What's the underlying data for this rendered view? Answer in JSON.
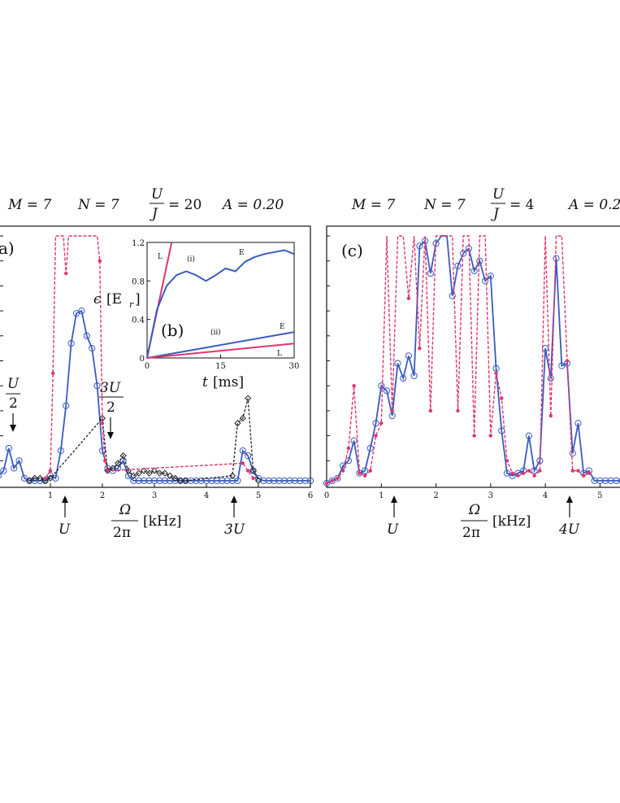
{
  "figure": {
    "panel_a": {
      "params": {
        "M": "M = 7",
        "N": "N = 7",
        "U_over_J_num": "U",
        "U_over_J_den": "J",
        "U_over_J_val": "= 20",
        "A": "A = 0.20"
      },
      "label": "a)",
      "xlabel_num": "Ω",
      "xlabel_den": "2π",
      "xlabel_unit": "[kHz]",
      "annotations": {
        "u_half_num": "U",
        "u_half_den": "2",
        "three_u_half_num": "3U",
        "three_u_half_den": "2",
        "u": "U",
        "three_u": "3U"
      }
    },
    "inset_b": {
      "label": "(b)",
      "ylabel": "ϵ",
      "ylabel_unit": "[E",
      "ylabel_sub": "r",
      "ylabel_close": "]",
      "xlabel": "t",
      "xlabel_unit": "[ms]",
      "curve_labels": {
        "i": "(i)",
        "ii": "(ii)",
        "L_top": "L",
        "E_top": "E",
        "E_bottom": "E",
        "L_bottom": "L"
      }
    },
    "panel_c": {
      "params": {
        "M": "M = 7",
        "N": "N = 7",
        "U_over_J_num": "U",
        "U_over_J_den": "J",
        "U_over_J_val": "= 4",
        "A": "A = 0.2"
      },
      "label": "(c)",
      "xlabel_num": "Ω",
      "xlabel_den": "2π",
      "xlabel_unit": "[kHz]",
      "annotations": {
        "u": "U",
        "four_u": "4U"
      }
    }
  },
  "chart_data": [
    {
      "type": "line",
      "id": "panel_a",
      "title": "M = 7   N = 7   U/J = 20   A = 0.20",
      "xlabel": "Ω/2π [kHz]",
      "ylabel": "",
      "xlim": [
        0,
        6
      ],
      "ylim": [
        0,
        1
      ],
      "xticks": [
        1,
        2,
        3,
        4,
        5,
        6
      ],
      "colors": {
        "blue": "#3a5bbf",
        "red": "#e0356b",
        "black": "#222222"
      },
      "series": [
        {
          "name": "blue-circles",
          "x": [
            0,
            0.1,
            0.2,
            0.3,
            0.4,
            0.5,
            0.6,
            0.7,
            0.8,
            0.9,
            1.0,
            1.1,
            1.2,
            1.3,
            1.4,
            1.5,
            1.6,
            1.7,
            1.8,
            1.9,
            2.0,
            2.1,
            2.2,
            2.3,
            2.4,
            2.5,
            2.6,
            2.7,
            2.8,
            2.9,
            3.0,
            3.1,
            3.2,
            3.3,
            3.4,
            3.5,
            3.6,
            3.7,
            3.8,
            3.9,
            4.0,
            4.1,
            4.2,
            4.3,
            4.4,
            4.5,
            4.6,
            4.7,
            4.8,
            4.9,
            5.0,
            5.1,
            5.2,
            5.3,
            5.4,
            5.5,
            5.6,
            5.7,
            5.8,
            5.9,
            6.0
          ],
          "y": [
            0.04,
            0.06,
            0.15,
            0.07,
            0.1,
            0.03,
            0.02,
            0.02,
            0.02,
            0.02,
            0.04,
            0.03,
            0.14,
            0.32,
            0.57,
            0.69,
            0.7,
            0.6,
            0.55,
            0.4,
            0.14,
            0.07,
            0.06,
            0.07,
            0.1,
            0.04,
            0.02,
            0.02,
            0.02,
            0.02,
            0.02,
            0.02,
            0.02,
            0.02,
            0.02,
            0.02,
            0.02,
            0.02,
            0.02,
            0.02,
            0.02,
            0.02,
            0.02,
            0.02,
            0.02,
            0.02,
            0.02,
            0.14,
            0.12,
            0.06,
            0.03,
            0.02,
            0.02,
            0.02,
            0.02,
            0.02,
            0.02,
            0.02,
            0.02,
            0.02,
            0.02
          ]
        },
        {
          "name": "black-diamonds",
          "x": [
            0.6,
            0.7,
            0.8,
            0.9,
            1.0,
            2.0,
            2.1,
            2.2,
            2.3,
            2.4,
            2.5,
            2.6,
            2.7,
            2.8,
            2.9,
            3.0,
            3.1,
            3.2,
            3.3,
            3.4,
            3.5,
            3.6,
            4.5,
            4.6,
            4.7,
            4.8,
            4.9,
            5.0
          ],
          "y": [
            0.02,
            0.03,
            0.03,
            0.02,
            0.03,
            0.27,
            0.06,
            0.07,
            0.09,
            0.12,
            0.06,
            0.04,
            0.05,
            0.06,
            0.05,
            0.06,
            0.05,
            0.05,
            0.04,
            0.03,
            0.02,
            0.02,
            0.04,
            0.25,
            0.27,
            0.35,
            0.06,
            0.02
          ]
        },
        {
          "name": "red-stars",
          "x": [
            0.9,
            1.0,
            1.05,
            1.1,
            1.2,
            1.25,
            1.3,
            1.35,
            1.4,
            1.8,
            1.85,
            1.9,
            1.95,
            2.0,
            2.05,
            2.1,
            4.7,
            4.8,
            4.9
          ],
          "y": [
            0.03,
            0.06,
            0.45,
            1.0,
            1.0,
            1.0,
            0.85,
            1.0,
            1.0,
            1.0,
            1.0,
            1.0,
            0.9,
            0.25,
            0.1,
            0.06,
            0.09,
            0.06,
            0.03
          ]
        }
      ]
    },
    {
      "type": "line",
      "id": "inset_b",
      "xlabel": "t [ms]",
      "ylabel": "ϵ [E_r]",
      "xlim": [
        0,
        30
      ],
      "ylim": [
        0,
        1.2
      ],
      "xticks": [
        0,
        15,
        30
      ],
      "yticks": [
        0,
        0.4,
        0.8,
        1.2
      ],
      "series": [
        {
          "name": "L (i)",
          "color": "#e0356b",
          "x": [
            0,
            5
          ],
          "y": [
            0,
            1.2
          ]
        },
        {
          "name": "E (i)",
          "color": "#3a5bbf",
          "x": [
            0,
            2,
            4,
            6,
            8,
            10,
            12,
            14,
            16,
            18,
            20,
            22,
            24,
            26,
            28,
            30
          ],
          "y": [
            0,
            0.5,
            0.75,
            0.86,
            0.9,
            0.86,
            0.8,
            0.86,
            0.93,
            0.9,
            1.0,
            1.05,
            1.08,
            1.1,
            1.12,
            1.08
          ]
        },
        {
          "name": "E (ii)",
          "color": "#3a5bbf",
          "x": [
            0,
            30
          ],
          "y": [
            0,
            0.27
          ]
        },
        {
          "name": "L (ii)",
          "color": "#e0356b",
          "x": [
            0,
            30
          ],
          "y": [
            0,
            0.15
          ]
        }
      ]
    },
    {
      "type": "line",
      "id": "panel_c",
      "title": "M = 7   N = 7   U/J = 4   A = 0.2",
      "xlabel": "Ω/2π [kHz]",
      "ylabel": "",
      "xlim": [
        0,
        5.5
      ],
      "ylim": [
        0,
        1
      ],
      "xticks": [
        0,
        1,
        2,
        3,
        4,
        5
      ],
      "series": [
        {
          "name": "blue-circles",
          "x": [
            0.0,
            0.1,
            0.2,
            0.3,
            0.4,
            0.5,
            0.6,
            0.7,
            0.8,
            0.9,
            1.0,
            1.1,
            1.2,
            1.3,
            1.4,
            1.5,
            1.6,
            1.7,
            1.8,
            1.9,
            2.0,
            2.1,
            2.2,
            2.3,
            2.4,
            2.5,
            2.6,
            2.7,
            2.8,
            2.9,
            3.0,
            3.1,
            3.2,
            3.3,
            3.4,
            3.5,
            3.6,
            3.7,
            3.8,
            3.9,
            4.0,
            4.1,
            4.2,
            4.3,
            4.4,
            4.5,
            4.6,
            4.7,
            4.8,
            4.9,
            5.0,
            5.1,
            5.2,
            5.3,
            5.4,
            5.5
          ],
          "y": [
            0.01,
            0.02,
            0.03,
            0.08,
            0.1,
            0.18,
            0.05,
            0.06,
            0.15,
            0.25,
            0.4,
            0.38,
            0.28,
            0.49,
            0.43,
            0.52,
            0.44,
            0.96,
            0.98,
            0.85,
            0.97,
            1.0,
            1.0,
            0.76,
            0.88,
            0.93,
            0.95,
            0.86,
            0.9,
            0.82,
            0.84,
            0.47,
            0.22,
            0.05,
            0.04,
            0.05,
            0.06,
            0.2,
            0.06,
            0.1,
            0.55,
            0.43,
            0.91,
            0.48,
            0.49,
            0.13,
            0.25,
            0.05,
            0.06,
            0.02,
            0.02,
            0.02,
            0.02,
            0.02,
            0.02,
            0.02
          ]
        },
        {
          "name": "red-stars",
          "x": [
            0.0,
            0.1,
            0.2,
            0.3,
            0.4,
            0.5,
            0.6,
            0.7,
            0.8,
            0.9,
            1.0,
            1.1,
            1.2,
            1.3,
            1.4,
            1.5,
            1.6,
            1.7,
            1.8,
            1.9,
            2.0,
            2.1,
            2.2,
            2.3,
            2.4,
            2.5,
            2.6,
            2.7,
            2.8,
            2.9,
            3.0,
            3.1,
            3.2,
            3.3,
            3.4,
            3.5,
            3.6,
            3.7,
            3.8,
            3.9,
            4.0,
            4.1,
            4.2,
            4.3,
            4.4,
            4.5,
            4.6,
            4.7,
            4.8
          ],
          "y": [
            0.01,
            0.02,
            0.03,
            0.06,
            0.15,
            0.4,
            0.05,
            0.04,
            0.06,
            0.2,
            0.25,
            1.0,
            0.3,
            1.0,
            1.0,
            0.75,
            1.0,
            0.55,
            1.0,
            0.3,
            1.0,
            1.0,
            1.0,
            1.0,
            0.3,
            1.0,
            1.0,
            0.2,
            1.0,
            1.0,
            0.2,
            0.45,
            0.35,
            0.1,
            0.05,
            0.04,
            0.05,
            0.06,
            0.04,
            0.06,
            1.0,
            0.28,
            1.0,
            1.0,
            0.5,
            0.06,
            0.06,
            0.04,
            0.05
          ]
        }
      ]
    }
  ]
}
